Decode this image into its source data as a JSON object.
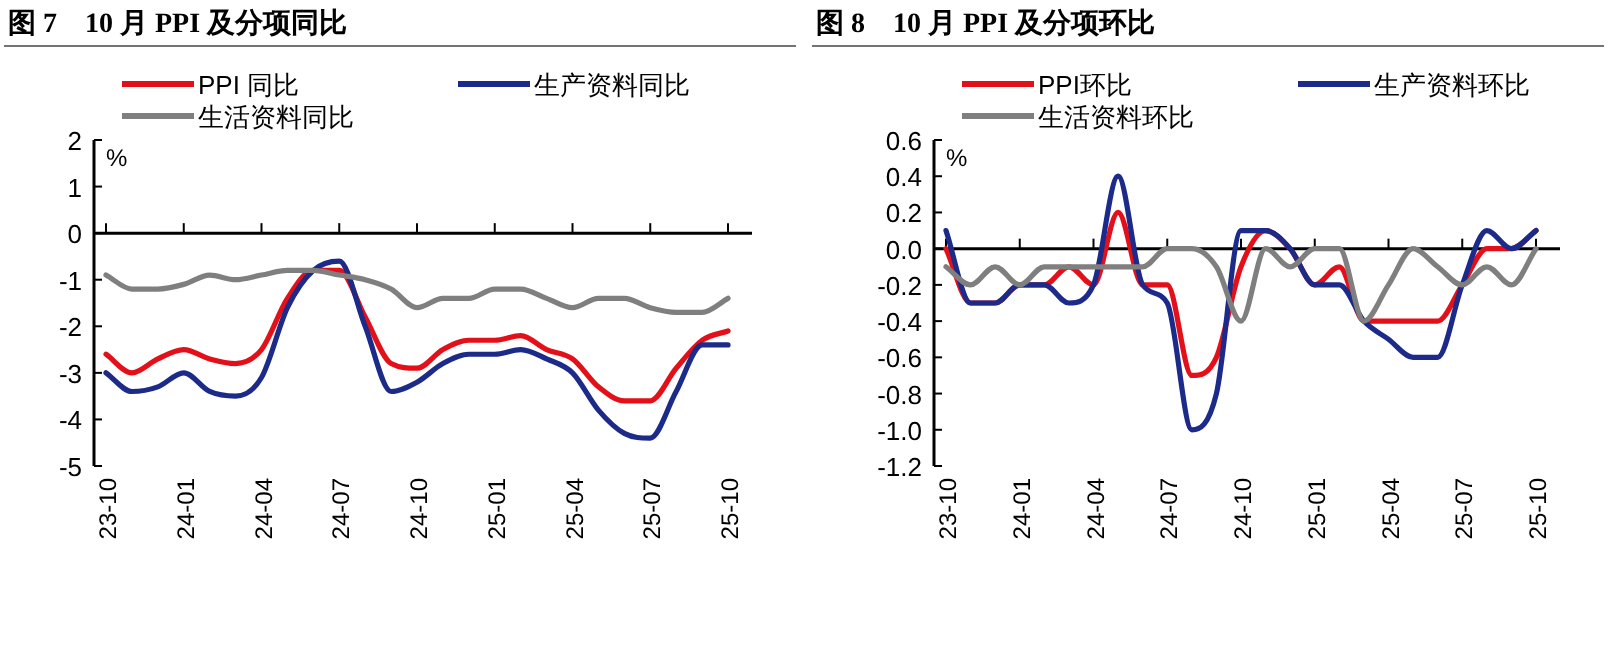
{
  "chart_data": [
    {
      "type": "line",
      "title": "图 7　10 月 PPI 及分项同比",
      "ylabel": "%",
      "legend": "top",
      "ylim": [
        -5,
        2
      ],
      "yticks": [
        -5,
        -4,
        -3,
        -2,
        -1,
        0,
        1,
        2
      ],
      "categories": [
        "23-10",
        null,
        null,
        "24-01",
        null,
        null,
        "24-04",
        null,
        null,
        "24-07",
        null,
        null,
        "24-10",
        null,
        null,
        "25-01",
        null,
        null,
        "25-04",
        null,
        null,
        "25-07",
        null,
        null,
        "25-10"
      ],
      "series": [
        {
          "name": "PPI 同比",
          "color": "#e3101a",
          "values": [
            -2.6,
            -3.0,
            -2.7,
            -2.5,
            -2.7,
            -2.8,
            -2.5,
            -1.4,
            -0.8,
            -0.8,
            -1.8,
            -2.8,
            -2.9,
            -2.5,
            -2.3,
            -2.3,
            -2.2,
            -2.5,
            -2.7,
            -3.3,
            -3.6,
            -3.6,
            -2.9,
            -2.3,
            -2.1
          ]
        },
        {
          "name": "生产资料同比",
          "color": "#1c2a8a",
          "values": [
            -3.0,
            -3.4,
            -3.3,
            -3.0,
            -3.4,
            -3.5,
            -3.1,
            -1.6,
            -0.8,
            -0.6,
            -2.0,
            -3.4,
            -3.2,
            -2.8,
            -2.6,
            -2.6,
            -2.5,
            -2.7,
            -3.0,
            -3.8,
            -4.3,
            -4.4,
            -3.4,
            -2.4,
            -2.4
          ]
        },
        {
          "name": "生活资料同比",
          "color": "#7f7f7f",
          "values": [
            -0.9,
            -1.2,
            -1.2,
            -1.1,
            -0.9,
            -1.0,
            -0.9,
            -0.8,
            -0.8,
            -0.9,
            -1.0,
            -1.2,
            -1.6,
            -1.4,
            -1.4,
            -1.2,
            -1.2,
            -1.4,
            -1.6,
            -1.4,
            -1.4,
            -1.6,
            -1.7,
            -1.7,
            -1.4
          ]
        }
      ]
    },
    {
      "type": "line",
      "title": "图 8　10 月 PPI 及分项环比",
      "ylabel": "%",
      "legend": "top",
      "ylim": [
        -1.2,
        0.6
      ],
      "yticks": [
        {
          "value": -1.2,
          "label": "-1.2"
        },
        {
          "value": -1.0,
          "label": "-1.0"
        },
        {
          "value": -0.8,
          "label": "-0.8"
        },
        {
          "value": -0.6,
          "label": "-0.6"
        },
        {
          "value": -0.4,
          "label": "-0.4"
        },
        {
          "value": -0.2,
          "label": "-0.2"
        },
        {
          "value": 0,
          "label": "0.0"
        },
        {
          "value": 0.2,
          "label": "0.2"
        },
        {
          "value": 0.4,
          "label": "0.4"
        },
        {
          "value": 0.6,
          "label": "0.6"
        }
      ],
      "categories": [
        "23-10",
        null,
        null,
        "24-01",
        null,
        null,
        "24-04",
        null,
        null,
        "24-07",
        null,
        null,
        "24-10",
        null,
        null,
        "25-01",
        null,
        null,
        "25-04",
        null,
        null,
        "25-07",
        null,
        null,
        "25-10"
      ],
      "series": [
        {
          "name": "PPI环比",
          "color": "#e3101a",
          "values": [
            0.0,
            -0.3,
            -0.3,
            -0.2,
            -0.2,
            -0.1,
            -0.2,
            0.2,
            -0.2,
            -0.2,
            -0.7,
            -0.6,
            -0.1,
            0.1,
            0.0,
            -0.2,
            -0.1,
            -0.4,
            -0.4,
            -0.4,
            -0.4,
            -0.2,
            0.0,
            0.0,
            0.1
          ]
        },
        {
          "name": "生产资料环比",
          "color": "#1c2a8a",
          "values": [
            0.1,
            -0.3,
            -0.3,
            -0.2,
            -0.2,
            -0.3,
            -0.2,
            0.4,
            -0.2,
            -0.3,
            -1.0,
            -0.8,
            0.1,
            0.1,
            0.0,
            -0.2,
            -0.2,
            -0.4,
            -0.5,
            -0.6,
            -0.6,
            -0.2,
            0.1,
            0.0,
            0.1
          ]
        },
        {
          "name": "生活资料环比",
          "color": "#7f7f7f",
          "values": [
            -0.1,
            -0.2,
            -0.1,
            -0.2,
            -0.1,
            -0.1,
            -0.1,
            -0.1,
            -0.1,
            0.0,
            0.0,
            -0.1,
            -0.4,
            0.0,
            -0.1,
            0.0,
            0.0,
            -0.4,
            -0.2,
            0.0,
            -0.1,
            -0.2,
            -0.1,
            -0.2,
            0.0
          ]
        }
      ]
    }
  ]
}
